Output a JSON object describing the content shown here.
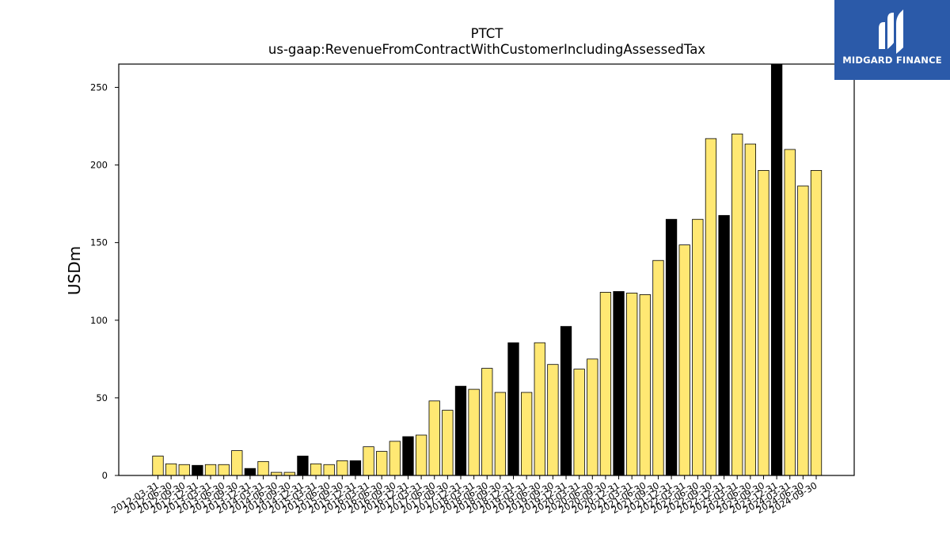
{
  "chart_data": {
    "type": "bar",
    "title": "PTCT",
    "subtitle": "us-gaap:RevenueFromContractWithCustomerIncludingAssessedTax",
    "ylabel": "USDm",
    "xlabel": "",
    "ylim": [
      0,
      265
    ],
    "yticks": [
      0,
      50,
      100,
      150,
      200,
      250
    ],
    "grid": false,
    "colors": {
      "quarter": "#ffe873",
      "annual": "#000000",
      "edge": "#000000"
    },
    "categories": [
      "2012-03-31",
      "2012-06-30",
      "2012-09-30",
      "2012-12-31",
      "2013-03-31",
      "2013-06-30",
      "2013-09-30",
      "2013-12-31",
      "2014-03-31",
      "2014-06-30",
      "2014-09-30",
      "2014-12-31",
      "2015-03-31",
      "2015-06-30",
      "2015-09-30",
      "2015-12-31",
      "2016-03-31",
      "2016-06-30",
      "2016-09-30",
      "2016-12-31",
      "2017-03-31",
      "2017-06-30",
      "2017-09-30",
      "2017-12-31",
      "2018-03-31",
      "2018-06-30",
      "2018-09-30",
      "2018-12-31",
      "2019-03-31",
      "2019-06-30",
      "2019-09-30",
      "2019-12-31",
      "2020-03-31",
      "2020-06-30",
      "2020-09-30",
      "2020-12-31",
      "2021-03-31",
      "2021-06-30",
      "2021-09-30",
      "2021-12-31",
      "2022-03-31",
      "2022-06-30",
      "2022-09-30",
      "2022-12-31",
      "2023-03-31",
      "2023-06-30",
      "2023-09-30",
      "2023-12-31",
      "2024-03-31",
      "2024-06-30",
      "2024-09-30"
    ],
    "values": [
      12.5,
      7.5,
      7.0,
      6.5,
      7.0,
      7.0,
      16.0,
      4.5,
      9.0,
      2.0,
      2.0,
      12.5,
      7.5,
      7.0,
      9.5,
      9.5,
      18.5,
      15.5,
      22.0,
      25.0,
      26.0,
      48.0,
      42.0,
      57.5,
      55.5,
      69.0,
      53.5,
      85.5,
      53.5,
      85.5,
      71.5,
      96.0,
      68.5,
      75.0,
      118.0,
      118.5,
      117.5,
      116.5,
      138.5,
      165.0,
      148.5,
      165.0,
      217.0,
      167.5,
      220.0,
      213.5,
      196.5,
      265.0,
      210.0,
      186.5,
      196.5
    ],
    "kind": [
      "q",
      "q",
      "q",
      "a",
      "q",
      "q",
      "q",
      "a",
      "q",
      "q",
      "q",
      "a",
      "q",
      "q",
      "q",
      "a",
      "q",
      "q",
      "q",
      "a",
      "q",
      "q",
      "q",
      "a",
      "q",
      "q",
      "q",
      "a",
      "q",
      "q",
      "q",
      "a",
      "q",
      "q",
      "q",
      "a",
      "q",
      "q",
      "q",
      "a",
      "q",
      "q",
      "q",
      "a",
      "q",
      "q",
      "q",
      "a",
      "q",
      "q",
      "q"
    ]
  },
  "logo": {
    "text": "MIDGARD FINANCE",
    "background": "#2b5aa9"
  }
}
